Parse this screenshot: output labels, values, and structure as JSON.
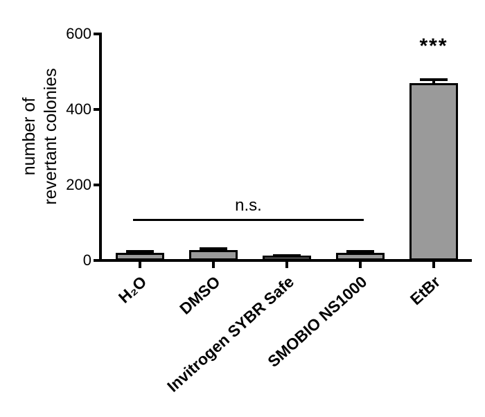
{
  "figure": {
    "background_color": "#ffffff",
    "text_color": "#000000"
  },
  "chart_data": {
    "type": "bar",
    "title": "",
    "xlabel": "",
    "ylabel": "number of revertant colonies",
    "ylabel_lines": [
      "number of",
      "revertant colonies"
    ],
    "categories": [
      "H₂O",
      "DMSO",
      "Invitrogen SYBR Safe",
      "SMOBIO NS1000",
      "EtBr"
    ],
    "values": [
      20,
      28,
      12,
      20,
      470
    ],
    "errors_plus": [
      8,
      6,
      4,
      8,
      12
    ],
    "ylim": [
      0,
      600
    ],
    "yticks": [
      0,
      200,
      400,
      600
    ],
    "grid": false,
    "legend": null,
    "bar_fill_color": "#9a9a9a",
    "bar_border_color": "#000000",
    "annotations": {
      "ns_bracket": {
        "label": "n.s.",
        "from_category_index": 0,
        "to_category_index": 3,
        "y_value": 110
      },
      "significance": {
        "label": "***",
        "category_index": 4
      }
    }
  }
}
